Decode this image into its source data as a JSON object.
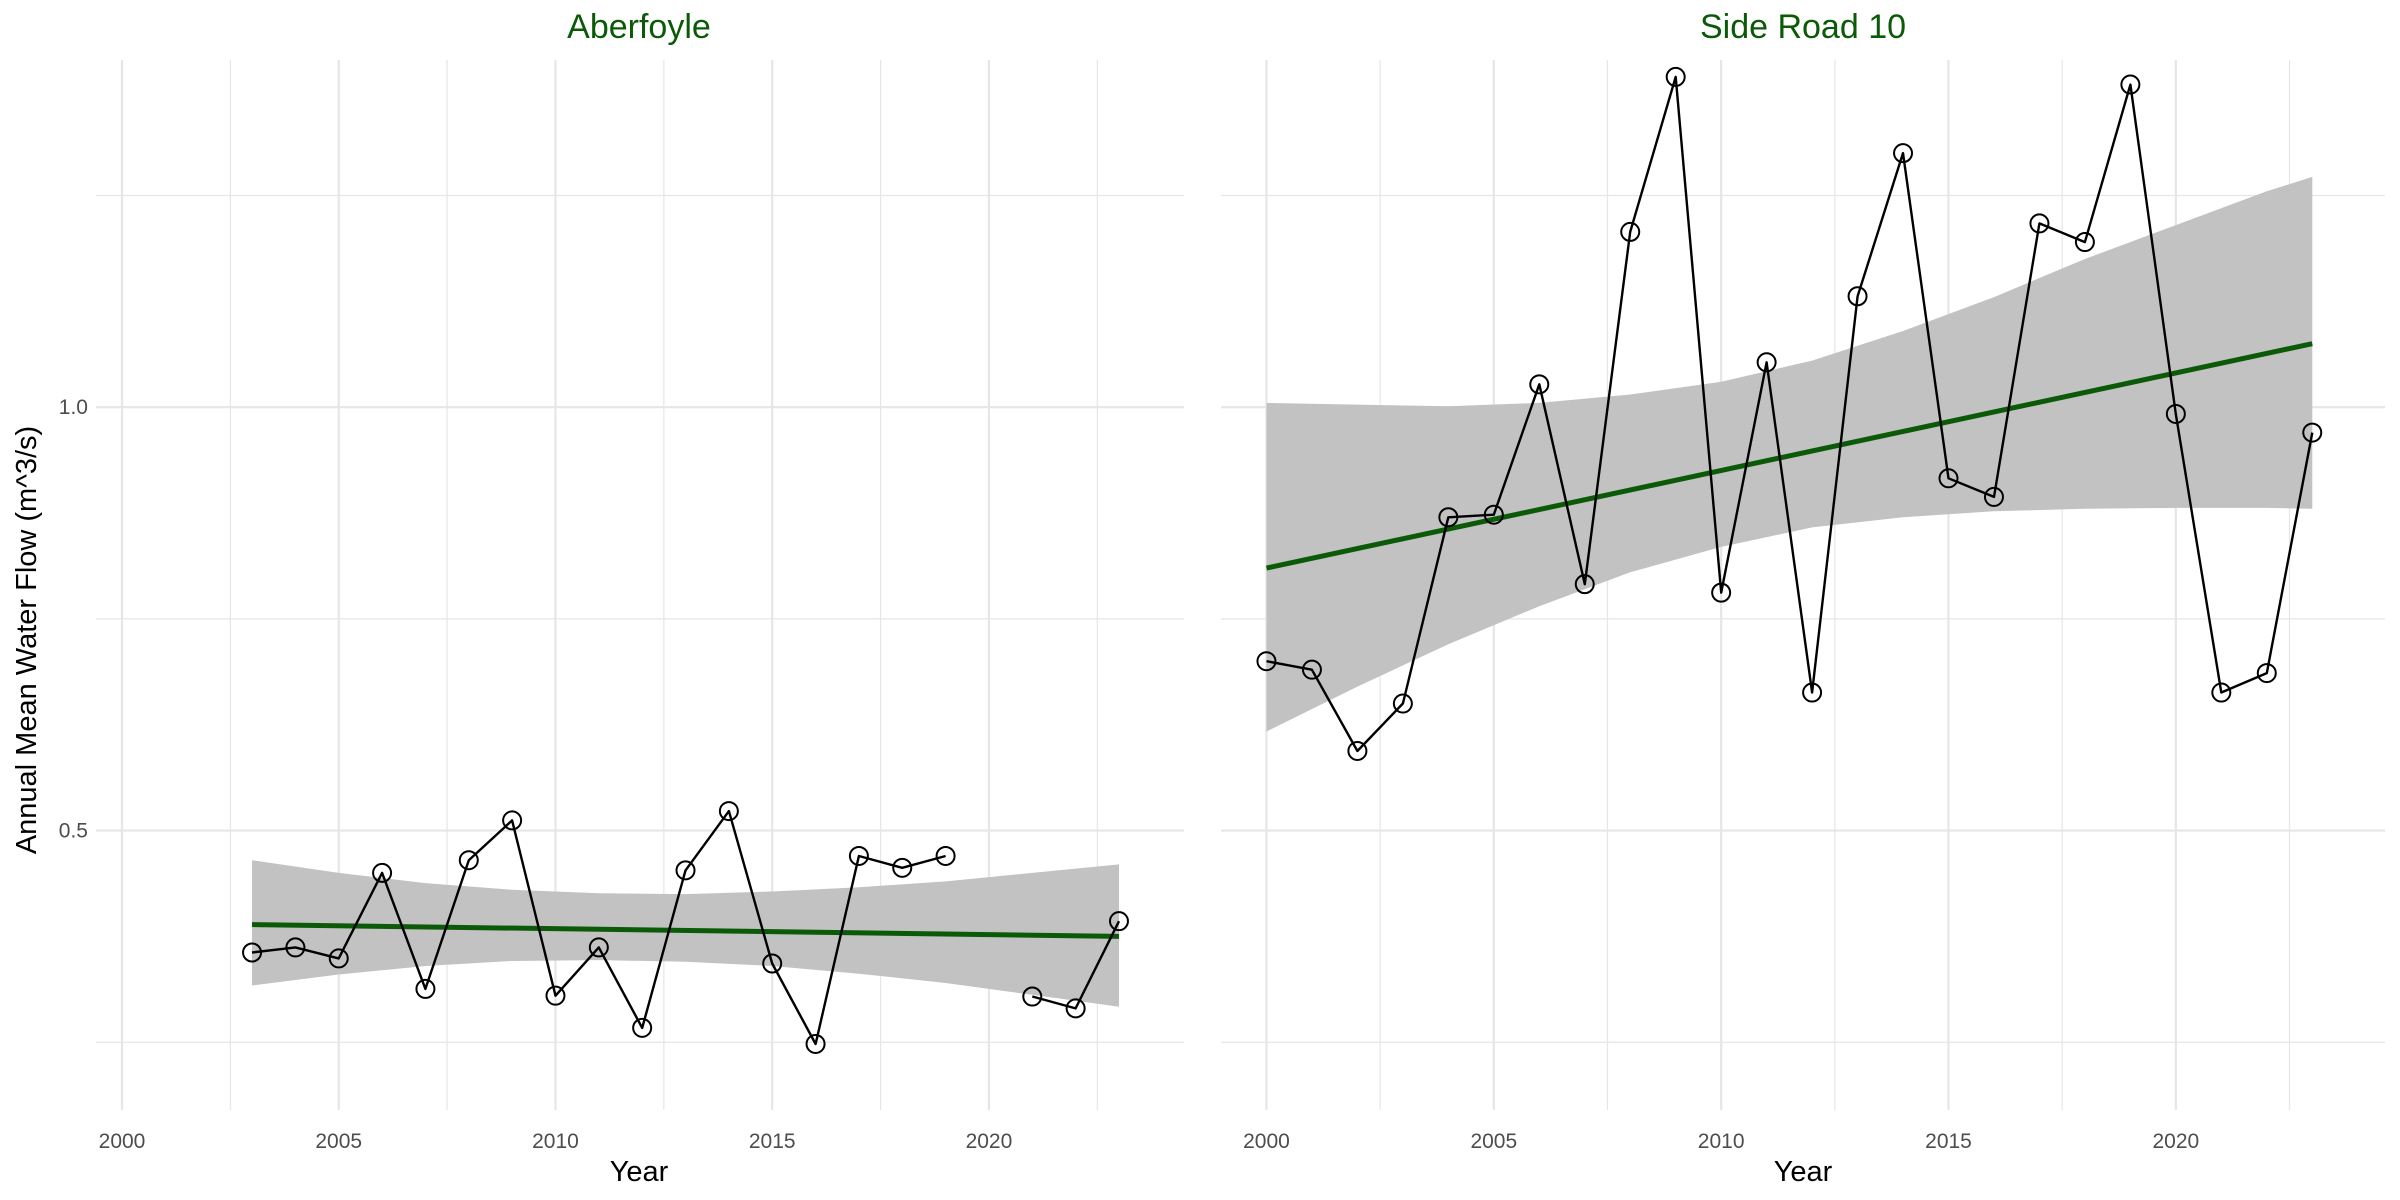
{
  "colors": {
    "trend": "#0b5a08",
    "ribbon": "#c2c2c2",
    "line": "#000000",
    "title": "#0b5a08",
    "grid": "#e6e6e6"
  },
  "chart_data": {
    "type": "line",
    "ylabel": "Annual Mean Water Flow (m^3/s)",
    "ylim": [
      0.17,
      1.41
    ],
    "yticks": [
      0.5,
      1.0
    ],
    "ytick_labels": [
      "0.5",
      "1.0"
    ],
    "grid": true,
    "panels": [
      {
        "title": "Aberfoyle",
        "xlabel": "Year",
        "xlim": [
          1999.4,
          2024.5
        ],
        "xticks": [
          2000,
          2005,
          2010,
          2015,
          2020
        ],
        "x": [
          2003,
          2004,
          2005,
          2006,
          2007,
          2008,
          2009,
          2010,
          2011,
          2012,
          2013,
          2014,
          2015,
          2016,
          2017,
          2018,
          2019,
          2021,
          2022,
          2023
        ],
        "y": [
          0.356,
          0.362,
          0.349,
          0.45,
          0.313,
          0.465,
          0.512,
          0.305,
          0.362,
          0.267,
          0.453,
          0.523,
          0.343,
          0.248,
          0.47,
          0.456,
          0.47,
          0.304,
          0.29,
          0.393
        ],
        "segments": [
          [
            0,
            16
          ],
          [
            17,
            19
          ]
        ],
        "trend": {
          "x": [
            2003,
            2023
          ],
          "y": [
            0.389,
            0.375
          ]
        },
        "ribbon": {
          "x": [
            2003,
            2005,
            2007,
            2009,
            2011,
            2013,
            2015,
            2017,
            2019,
            2021,
            2023
          ],
          "lower": [
            0.317,
            0.33,
            0.34,
            0.346,
            0.347,
            0.345,
            0.34,
            0.331,
            0.32,
            0.306,
            0.292
          ],
          "upper": [
            0.465,
            0.45,
            0.438,
            0.43,
            0.426,
            0.425,
            0.428,
            0.433,
            0.44,
            0.45,
            0.46
          ]
        }
      },
      {
        "title": "Side Road 10",
        "xlabel": "Year",
        "xlim": [
          1999.0,
          2024.6
        ],
        "xticks": [
          2000,
          2005,
          2010,
          2015,
          2020
        ],
        "x": [
          2000,
          2001,
          2002,
          2003,
          2004,
          2005,
          2006,
          2007,
          2008,
          2009,
          2010,
          2011,
          2012,
          2013,
          2014,
          2015,
          2016,
          2017,
          2018,
          2019,
          2020,
          2021,
          2022,
          2023
        ],
        "y": [
          0.7,
          0.69,
          0.594,
          0.65,
          0.87,
          0.873,
          1.027,
          0.791,
          1.207,
          1.39,
          0.781,
          1.053,
          0.663,
          1.131,
          1.3,
          0.916,
          0.894,
          1.217,
          1.195,
          1.381,
          0.992,
          0.663,
          0.686,
          0.97
        ],
        "segments": [
          [
            0,
            23
          ]
        ],
        "trend": {
          "x": [
            2000,
            2023
          ],
          "y": [
            0.81,
            1.075
          ]
        },
        "ribbon": {
          "x": [
            2000,
            2002,
            2004,
            2006,
            2008,
            2010,
            2012,
            2014,
            2016,
            2018,
            2020,
            2022,
            2023
          ],
          "lower": [
            0.617,
            0.67,
            0.72,
            0.765,
            0.805,
            0.835,
            0.858,
            0.87,
            0.877,
            0.88,
            0.881,
            0.881,
            0.88
          ],
          "upper": [
            1.005,
            1.003,
            1.001,
            1.005,
            1.015,
            1.03,
            1.055,
            1.09,
            1.13,
            1.175,
            1.215,
            1.255,
            1.272
          ]
        }
      }
    ]
  }
}
